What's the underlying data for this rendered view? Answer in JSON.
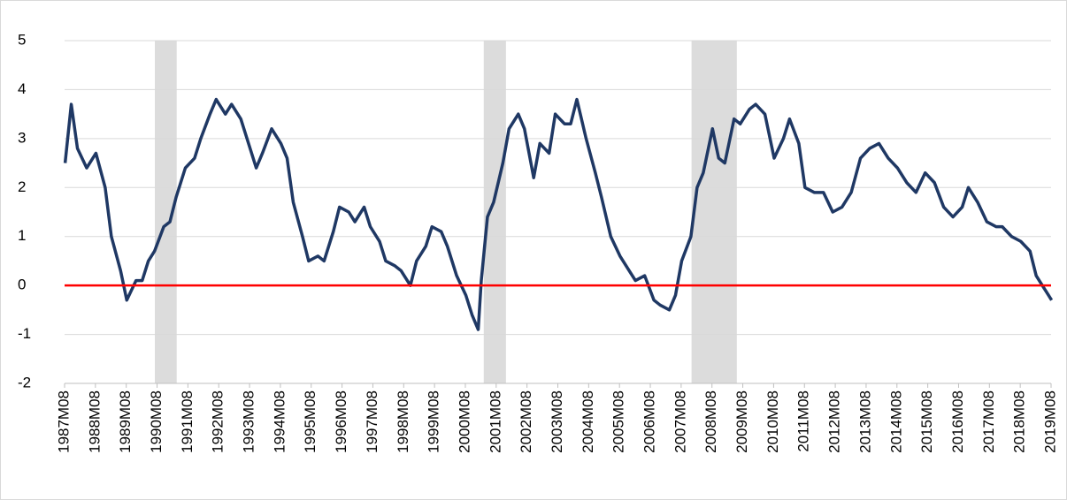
{
  "chart_data": {
    "type": "line",
    "series": [
      {
        "color": "#1f3864",
        "x": [
          1987.6,
          1987.8,
          1988.0,
          1988.3,
          1988.6,
          1988.9,
          1989.1,
          1989.4,
          1989.6,
          1989.9,
          1990.1,
          1990.3,
          1990.5,
          1990.8,
          1991.0,
          1991.2,
          1991.5,
          1991.8,
          1992.0,
          1992.3,
          1992.5,
          1992.8,
          1993.0,
          1993.3,
          1993.5,
          1993.8,
          1994.0,
          1994.3,
          1994.6,
          1994.8,
          1995.0,
          1995.3,
          1995.5,
          1995.8,
          1996.0,
          1996.3,
          1996.5,
          1996.8,
          1997.0,
          1997.3,
          1997.5,
          1997.8,
          1998.0,
          1998.3,
          1998.5,
          1998.8,
          1999.0,
          1999.3,
          1999.5,
          1999.8,
          2000.0,
          2000.3,
          2000.6,
          2000.8,
          2001.0,
          2001.1,
          2001.3,
          2001.5,
          2001.8,
          2002.0,
          2002.3,
          2002.5,
          2002.8,
          2003.0,
          2003.3,
          2003.5,
          2003.8,
          2004.0,
          2004.2,
          2004.5,
          2004.8,
          2005.0,
          2005.3,
          2005.6,
          2005.9,
          2006.1,
          2006.4,
          2006.7,
          2006.9,
          2007.2,
          2007.4,
          2007.6,
          2007.9,
          2008.1,
          2008.3,
          2008.6,
          2008.8,
          2009.0,
          2009.3,
          2009.5,
          2009.8,
          2010.0,
          2010.3,
          2010.6,
          2010.9,
          2011.1,
          2011.4,
          2011.6,
          2011.9,
          2012.2,
          2012.5,
          2012.8,
          2013.1,
          2013.4,
          2013.7,
          2014.0,
          2014.3,
          2014.6,
          2014.9,
          2015.2,
          2015.5,
          2015.8,
          2016.1,
          2016.4,
          2016.7,
          2016.9,
          2017.2,
          2017.5,
          2017.8,
          2018.0,
          2018.3,
          2018.6,
          2018.9,
          2019.1,
          2019.3,
          2019.5,
          2019.6
        ],
        "values": [
          2.5,
          3.7,
          2.8,
          2.4,
          2.7,
          2.0,
          1.0,
          0.3,
          -0.3,
          0.1,
          0.1,
          0.5,
          0.7,
          1.2,
          1.3,
          1.8,
          2.4,
          2.6,
          3.0,
          3.5,
          3.8,
          3.5,
          3.7,
          3.4,
          3.0,
          2.4,
          2.7,
          3.2,
          2.9,
          2.6,
          1.7,
          1.0,
          0.5,
          0.6,
          0.5,
          1.1,
          1.6,
          1.5,
          1.3,
          1.6,
          1.2,
          0.9,
          0.5,
          0.4,
          0.3,
          0.0,
          0.5,
          0.8,
          1.2,
          1.1,
          0.8,
          0.2,
          -0.2,
          -0.6,
          -0.9,
          0.1,
          1.4,
          1.7,
          2.5,
          3.2,
          3.5,
          3.2,
          2.2,
          2.9,
          2.7,
          3.5,
          3.3,
          3.3,
          3.8,
          3.0,
          2.3,
          1.8,
          1.0,
          0.6,
          0.3,
          0.1,
          0.2,
          -0.3,
          -0.4,
          -0.5,
          -0.2,
          0.5,
          1.0,
          2.0,
          2.3,
          3.2,
          2.6,
          2.5,
          3.4,
          3.3,
          3.6,
          3.7,
          3.5,
          2.6,
          3.0,
          3.4,
          2.9,
          2.0,
          1.9,
          1.9,
          1.5,
          1.6,
          1.9,
          2.6,
          2.8,
          2.9,
          2.6,
          2.4,
          2.1,
          1.9,
          2.3,
          2.1,
          1.6,
          1.4,
          1.6,
          2.0,
          1.7,
          1.3,
          1.2,
          1.2,
          1.0,
          0.9,
          0.7,
          0.2,
          0.0,
          -0.2,
          -0.3
        ]
      }
    ],
    "shaded_regions": [
      [
        1990.51,
        1991.22
      ],
      [
        2001.18,
        2001.9
      ],
      [
        2007.92,
        2009.39
      ]
    ],
    "shade_color": "#dcdcdc",
    "hline": 0,
    "hline_color": "#ff0000",
    "xlim": [
      1987.583,
      2019.583
    ],
    "xticks": [
      {
        "value": 1987.583,
        "label": "1987M08"
      },
      {
        "value": 1988.583,
        "label": "1988M08"
      },
      {
        "value": 1989.583,
        "label": "1989M08"
      },
      {
        "value": 1990.583,
        "label": "1990M08"
      },
      {
        "value": 1991.583,
        "label": "1991M08"
      },
      {
        "value": 1992.583,
        "label": "1992M08"
      },
      {
        "value": 1993.583,
        "label": "1993M08"
      },
      {
        "value": 1994.583,
        "label": "1994M08"
      },
      {
        "value": 1995.583,
        "label": "1995M08"
      },
      {
        "value": 1996.583,
        "label": "1996M08"
      },
      {
        "value": 1997.583,
        "label": "1997M08"
      },
      {
        "value": 1998.583,
        "label": "1998M08"
      },
      {
        "value": 1999.583,
        "label": "1999M08"
      },
      {
        "value": 2000.583,
        "label": "2000M08"
      },
      {
        "value": 2001.583,
        "label": "2001M08"
      },
      {
        "value": 2002.583,
        "label": "2002M08"
      },
      {
        "value": 2003.583,
        "label": "2003M08"
      },
      {
        "value": 2004.583,
        "label": "2004M08"
      },
      {
        "value": 2005.583,
        "label": "2005M08"
      },
      {
        "value": 2006.583,
        "label": "2006M08"
      },
      {
        "value": 2007.583,
        "label": "2007M08"
      },
      {
        "value": 2008.583,
        "label": "2008M08"
      },
      {
        "value": 2009.583,
        "label": "2009M08"
      },
      {
        "value": 2010.583,
        "label": "2010M08"
      },
      {
        "value": 2011.583,
        "label": "2011M08"
      },
      {
        "value": 2012.583,
        "label": "2012M08"
      },
      {
        "value": 2013.583,
        "label": "2013M08"
      },
      {
        "value": 2014.583,
        "label": "2014M08"
      },
      {
        "value": 2015.583,
        "label": "2015M08"
      },
      {
        "value": 2016.583,
        "label": "2016M08"
      },
      {
        "value": 2017.583,
        "label": "2017M08"
      },
      {
        "value": 2018.583,
        "label": "2018M08"
      },
      {
        "value": 2019.583,
        "label": "2019M08"
      }
    ],
    "ylim": [
      -2,
      5
    ],
    "yticks": [
      -2,
      -1,
      0,
      1,
      2,
      3,
      4,
      5
    ],
    "grid": true
  }
}
